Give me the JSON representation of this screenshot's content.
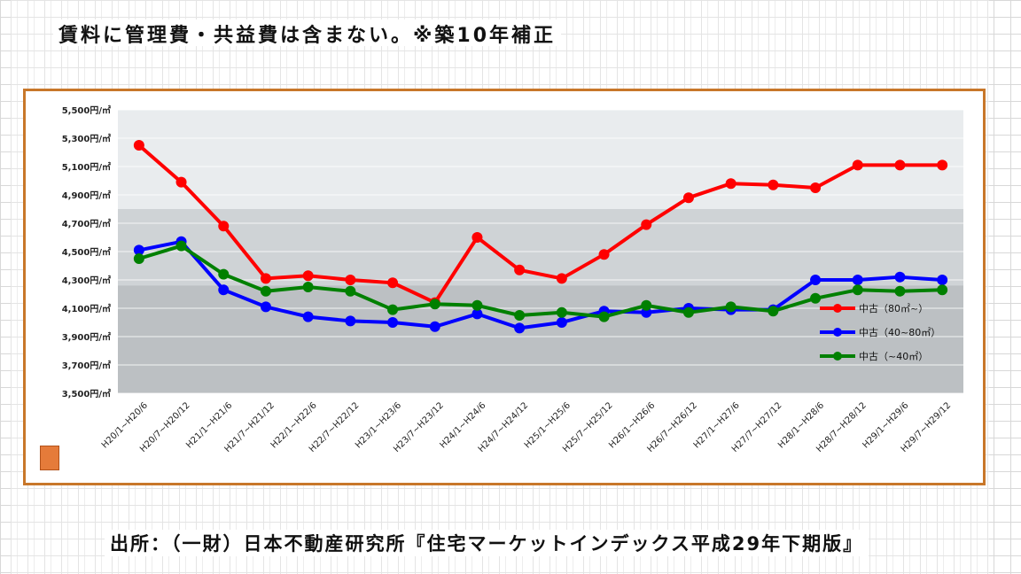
{
  "title": "賃料に管理費・共益費は含まない。※築10年補正",
  "source": "出所：（一財）日本不動産研究所『住宅マーケットインデックス平成29年下期版』",
  "colors": {
    "frame": "#c8772a",
    "series": [
      "#ff0000",
      "#0000ff",
      "#008000"
    ]
  },
  "chart_data": {
    "type": "line",
    "categories": [
      "H20/1~H20/6",
      "H20/7~H20/12",
      "H21/1~H21/6",
      "H21/7~H21/12",
      "H22/1~H22/6",
      "H22/7~H22/12",
      "H23/1~H23/6",
      "H23/7~H23/12",
      "H24/1~H24/6",
      "H24/7~H24/12",
      "H25/1~H25/6",
      "H25/7~H25/12",
      "H26/1~H26/6",
      "H26/7~H26/12",
      "H27/1~H27/6",
      "H27/7~H27/12",
      "H28/1~H28/6",
      "H28/7~H28/12",
      "H29/1~H29/6",
      "H29/7~H29/12"
    ],
    "yticks": [
      "5,500円/㎡",
      "5,300円/㎡",
      "5,100円/㎡",
      "4,900円/㎡",
      "4,700円/㎡",
      "4,500円/㎡",
      "4,300円/㎡",
      "4,100円/㎡",
      "3,900円/㎡",
      "3,700円/㎡",
      "3,500円/㎡"
    ],
    "ylim": [
      3500,
      5500
    ],
    "series": [
      {
        "name": "中古（80㎡~）",
        "values": [
          5250,
          4990,
          4680,
          4310,
          4330,
          4300,
          4280,
          4140,
          4600,
          4370,
          4310,
          4480,
          4690,
          4880,
          4980,
          4970,
          4950,
          5110,
          5110,
          5110
        ]
      },
      {
        "name": "中古（40~80㎡）",
        "values": [
          4510,
          4570,
          4230,
          4110,
          4040,
          4010,
          4000,
          3970,
          4060,
          3960,
          4000,
          4080,
          4070,
          4100,
          4090,
          4090,
          4300,
          4300,
          4320,
          4300
        ]
      },
      {
        "name": "中古（~40㎡）",
        "values": [
          4450,
          4540,
          4340,
          4220,
          4250,
          4220,
          4090,
          4130,
          4120,
          4050,
          4070,
          4040,
          4120,
          4070,
          4110,
          4080,
          4170,
          4230,
          4220,
          4230
        ]
      }
    ],
    "legend_position": "bottom-right",
    "grid": true
  }
}
